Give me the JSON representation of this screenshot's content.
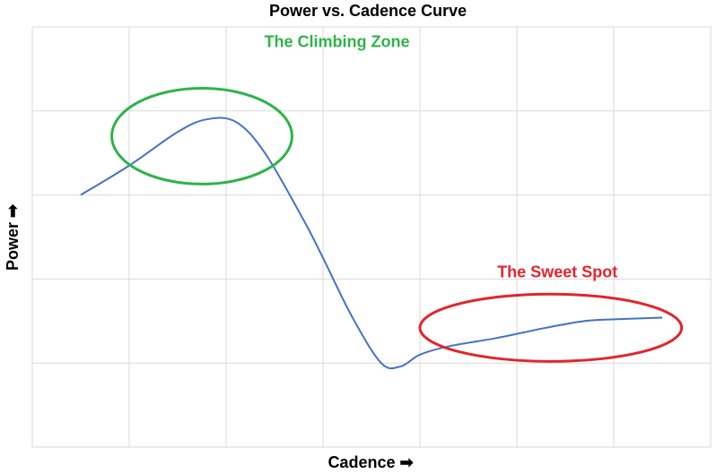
{
  "chart_data": {
    "type": "line",
    "title": "Power vs. Cadence Curve",
    "xlabel": "Cadence ➡",
    "ylabel": "Power ➡",
    "grid": true,
    "xlim": [
      0,
      7
    ],
    "ylim": [
      0,
      5
    ],
    "series": [
      {
        "color": "#4472c4",
        "points": [
          [
            0.5,
            3.0
          ],
          [
            1.0,
            3.35
          ],
          [
            1.5,
            3.75
          ],
          [
            1.8,
            3.9
          ],
          [
            2.1,
            3.87
          ],
          [
            2.4,
            3.5
          ],
          [
            2.8,
            2.7
          ],
          [
            3.0,
            2.25
          ],
          [
            3.3,
            1.55
          ],
          [
            3.6,
            1.0
          ],
          [
            3.8,
            0.96
          ],
          [
            4.0,
            1.1
          ],
          [
            4.3,
            1.2
          ],
          [
            4.8,
            1.3
          ],
          [
            5.3,
            1.42
          ],
          [
            5.7,
            1.5
          ],
          [
            6.0,
            1.52
          ],
          [
            6.5,
            1.54
          ]
        ]
      }
    ],
    "annotations": [
      {
        "text": "The Climbing Zone",
        "color": "#2eb34a",
        "ellipse_center": [
          1.75,
          3.7
        ],
        "ellipse_radii": [
          0.93,
          0.57
        ]
      },
      {
        "text": "The Sweet Spot",
        "color": "#e0262e",
        "ellipse_center": [
          5.35,
          1.42
        ],
        "ellipse_radii": [
          1.35,
          0.4
        ]
      }
    ]
  },
  "colors": {
    "grid": "#d9d9d9",
    "text": "#000000"
  }
}
